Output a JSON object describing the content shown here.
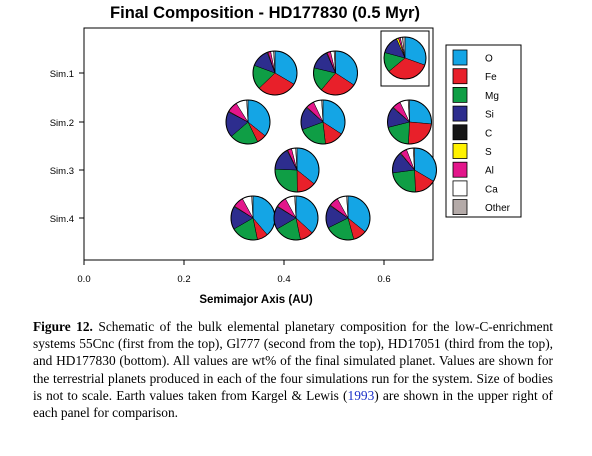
{
  "chart_data": {
    "type": "pie",
    "title": "Final Composition - HD177830 (0.5 Myr)",
    "xlabel": "Semimajor Axis (AU)",
    "ylabel": "",
    "xlim": [
      0.0,
      0.7
    ],
    "xticks": [
      "0.0",
      "0.2",
      "0.4",
      "0.6"
    ],
    "xtick_values": [
      0.0,
      0.2,
      0.4,
      0.6
    ],
    "rows": [
      "Sim.1",
      "Sim.2",
      "Sim.3",
      "Sim.4"
    ],
    "grid": false,
    "legend_position": "right",
    "components": [
      {
        "name": "O",
        "color": "#14a5e5"
      },
      {
        "name": "Fe",
        "color": "#e8202a"
      },
      {
        "name": "Mg",
        "color": "#0f9e45"
      },
      {
        "name": "Si",
        "color": "#2d2d8e"
      },
      {
        "name": "C",
        "color": "#161616"
      },
      {
        "name": "S",
        "color": "#fff200"
      },
      {
        "name": "Al",
        "color": "#e3168b"
      },
      {
        "name": "Ca",
        "color": "#ffffff"
      },
      {
        "name": "Other",
        "color": "#b4aaa8"
      }
    ],
    "planets": [
      {
        "sim": "Sim.1",
        "a": 0.382,
        "values": [
          32,
          28,
          17,
          13,
          0,
          0.5,
          2,
          2,
          1
        ]
      },
      {
        "sim": "Sim.1",
        "a": 0.503,
        "values": [
          33,
          26,
          17,
          14,
          0,
          0.5,
          2.5,
          2.5,
          1
        ]
      },
      {
        "sim": "Sim.2",
        "a": 0.328,
        "values": [
          36,
          7,
          21,
          19,
          0,
          0.5,
          8,
          8,
          1
        ]
      },
      {
        "sim": "Sim.2",
        "a": 0.478,
        "values": [
          34,
          14,
          21,
          17,
          0,
          0.5,
          6,
          6,
          1
        ]
      },
      {
        "sim": "Sim.2",
        "a": 0.651,
        "values": [
          26,
          24,
          20,
          15,
          0,
          0.5,
          6,
          6,
          1
        ]
      },
      {
        "sim": "Sim.3",
        "a": 0.426,
        "values": [
          36,
          14,
          26,
          17,
          0,
          0.5,
          3,
          3,
          1
        ]
      },
      {
        "sim": "Sim.3",
        "a": 0.661,
        "values": [
          34,
          16,
          24,
          16,
          0,
          0.5,
          5,
          5,
          1
        ]
      },
      {
        "sim": "Sim.4",
        "a": 0.338,
        "values": [
          39,
          8,
          20,
          17,
          0,
          0.5,
          8,
          7,
          1
        ]
      },
      {
        "sim": "Sim.4",
        "a": 0.424,
        "values": [
          37,
          10,
          20,
          17,
          0,
          0.5,
          8,
          7,
          1
        ]
      },
      {
        "sim": "Sim.4",
        "a": 0.528,
        "values": [
          36,
          10,
          22,
          17,
          0,
          0.5,
          7,
          7,
          1
        ]
      }
    ],
    "earth_reference": {
      "values": [
        30,
        33,
        15,
        14,
        0,
        1.5,
        1.5,
        1.5,
        2
      ]
    }
  },
  "caption": {
    "label": "Figure 12.",
    "text_before": " Schematic of the bulk elemental planetary composition for the low-C-enrichment systems 55Cnc (first from the top), Gl777 (second from the top), HD17051 (third from the top), and HD177830 (bottom). All values are wt% of the final simulated planet. Values are shown for the terrestrial planets produced in each of the four simulations run for the system. Size of bodies is not to scale. Earth values taken from Kargel & Lewis (",
    "citation_year": "1993",
    "text_after": ") are shown in the upper right of each panel for comparison."
  }
}
